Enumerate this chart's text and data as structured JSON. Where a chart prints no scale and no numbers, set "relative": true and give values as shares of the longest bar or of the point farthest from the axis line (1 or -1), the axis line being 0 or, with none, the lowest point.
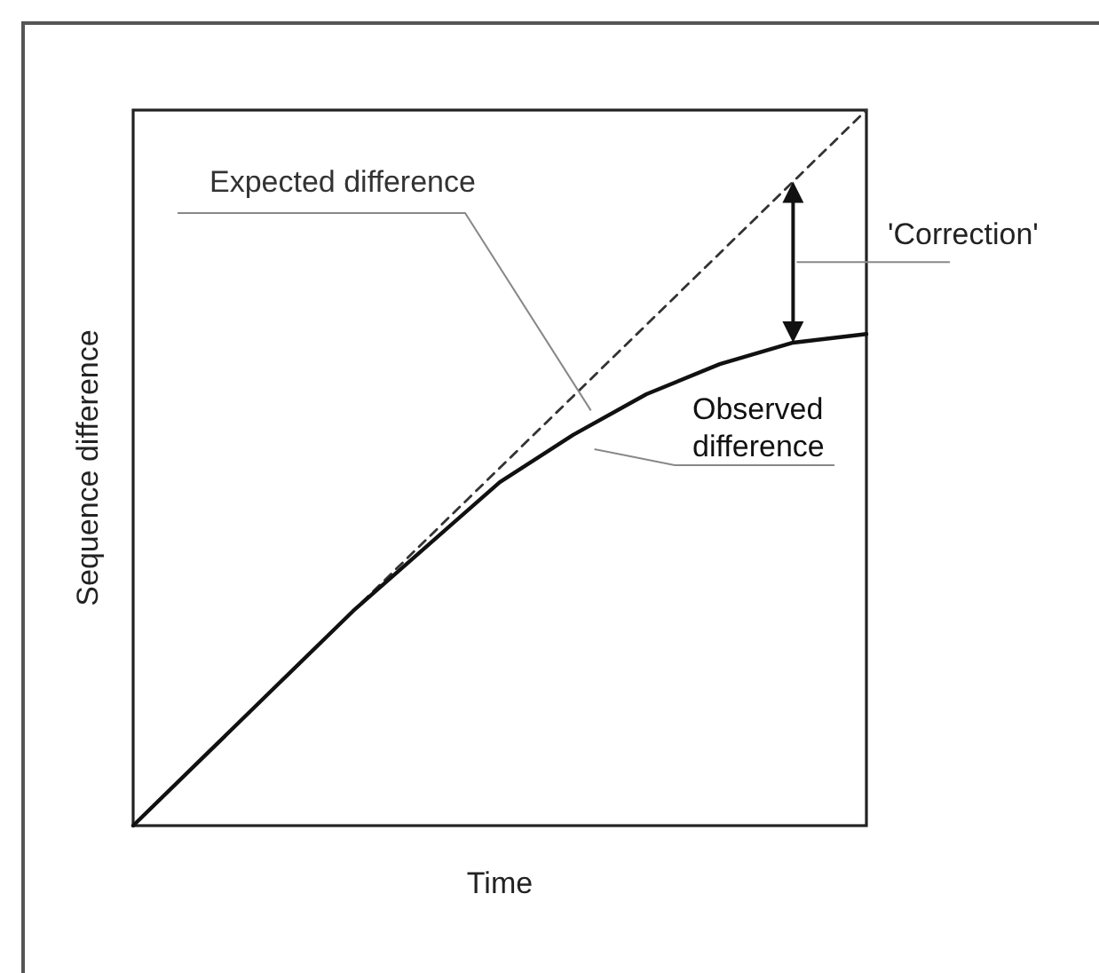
{
  "chart_data": {
    "type": "line",
    "relative": true,
    "xlabel": "Time",
    "ylabel": "Sequence difference",
    "categories": [
      null,
      null,
      null,
      null,
      null,
      null,
      null,
      null,
      null,
      null,
      null
    ],
    "series": [
      {
        "name": "Expected difference",
        "color": "#333333",
        "line_style": "dashed",
        "values": [
          0,
          0.1,
          0.2,
          0.3,
          0.4,
          0.5,
          0.6,
          0.7,
          0.8,
          0.9,
          1
        ]
      },
      {
        "name": "Observed difference",
        "color": "#111111",
        "line_style": "solid",
        "values": [
          0,
          0.1,
          0.2,
          0.3,
          0.39,
          0.48,
          0.546,
          0.603,
          0.645,
          0.675,
          0.687
        ]
      }
    ],
    "annotations": [
      "'Correction'"
    ],
    "grid": false,
    "marker": "none"
  }
}
